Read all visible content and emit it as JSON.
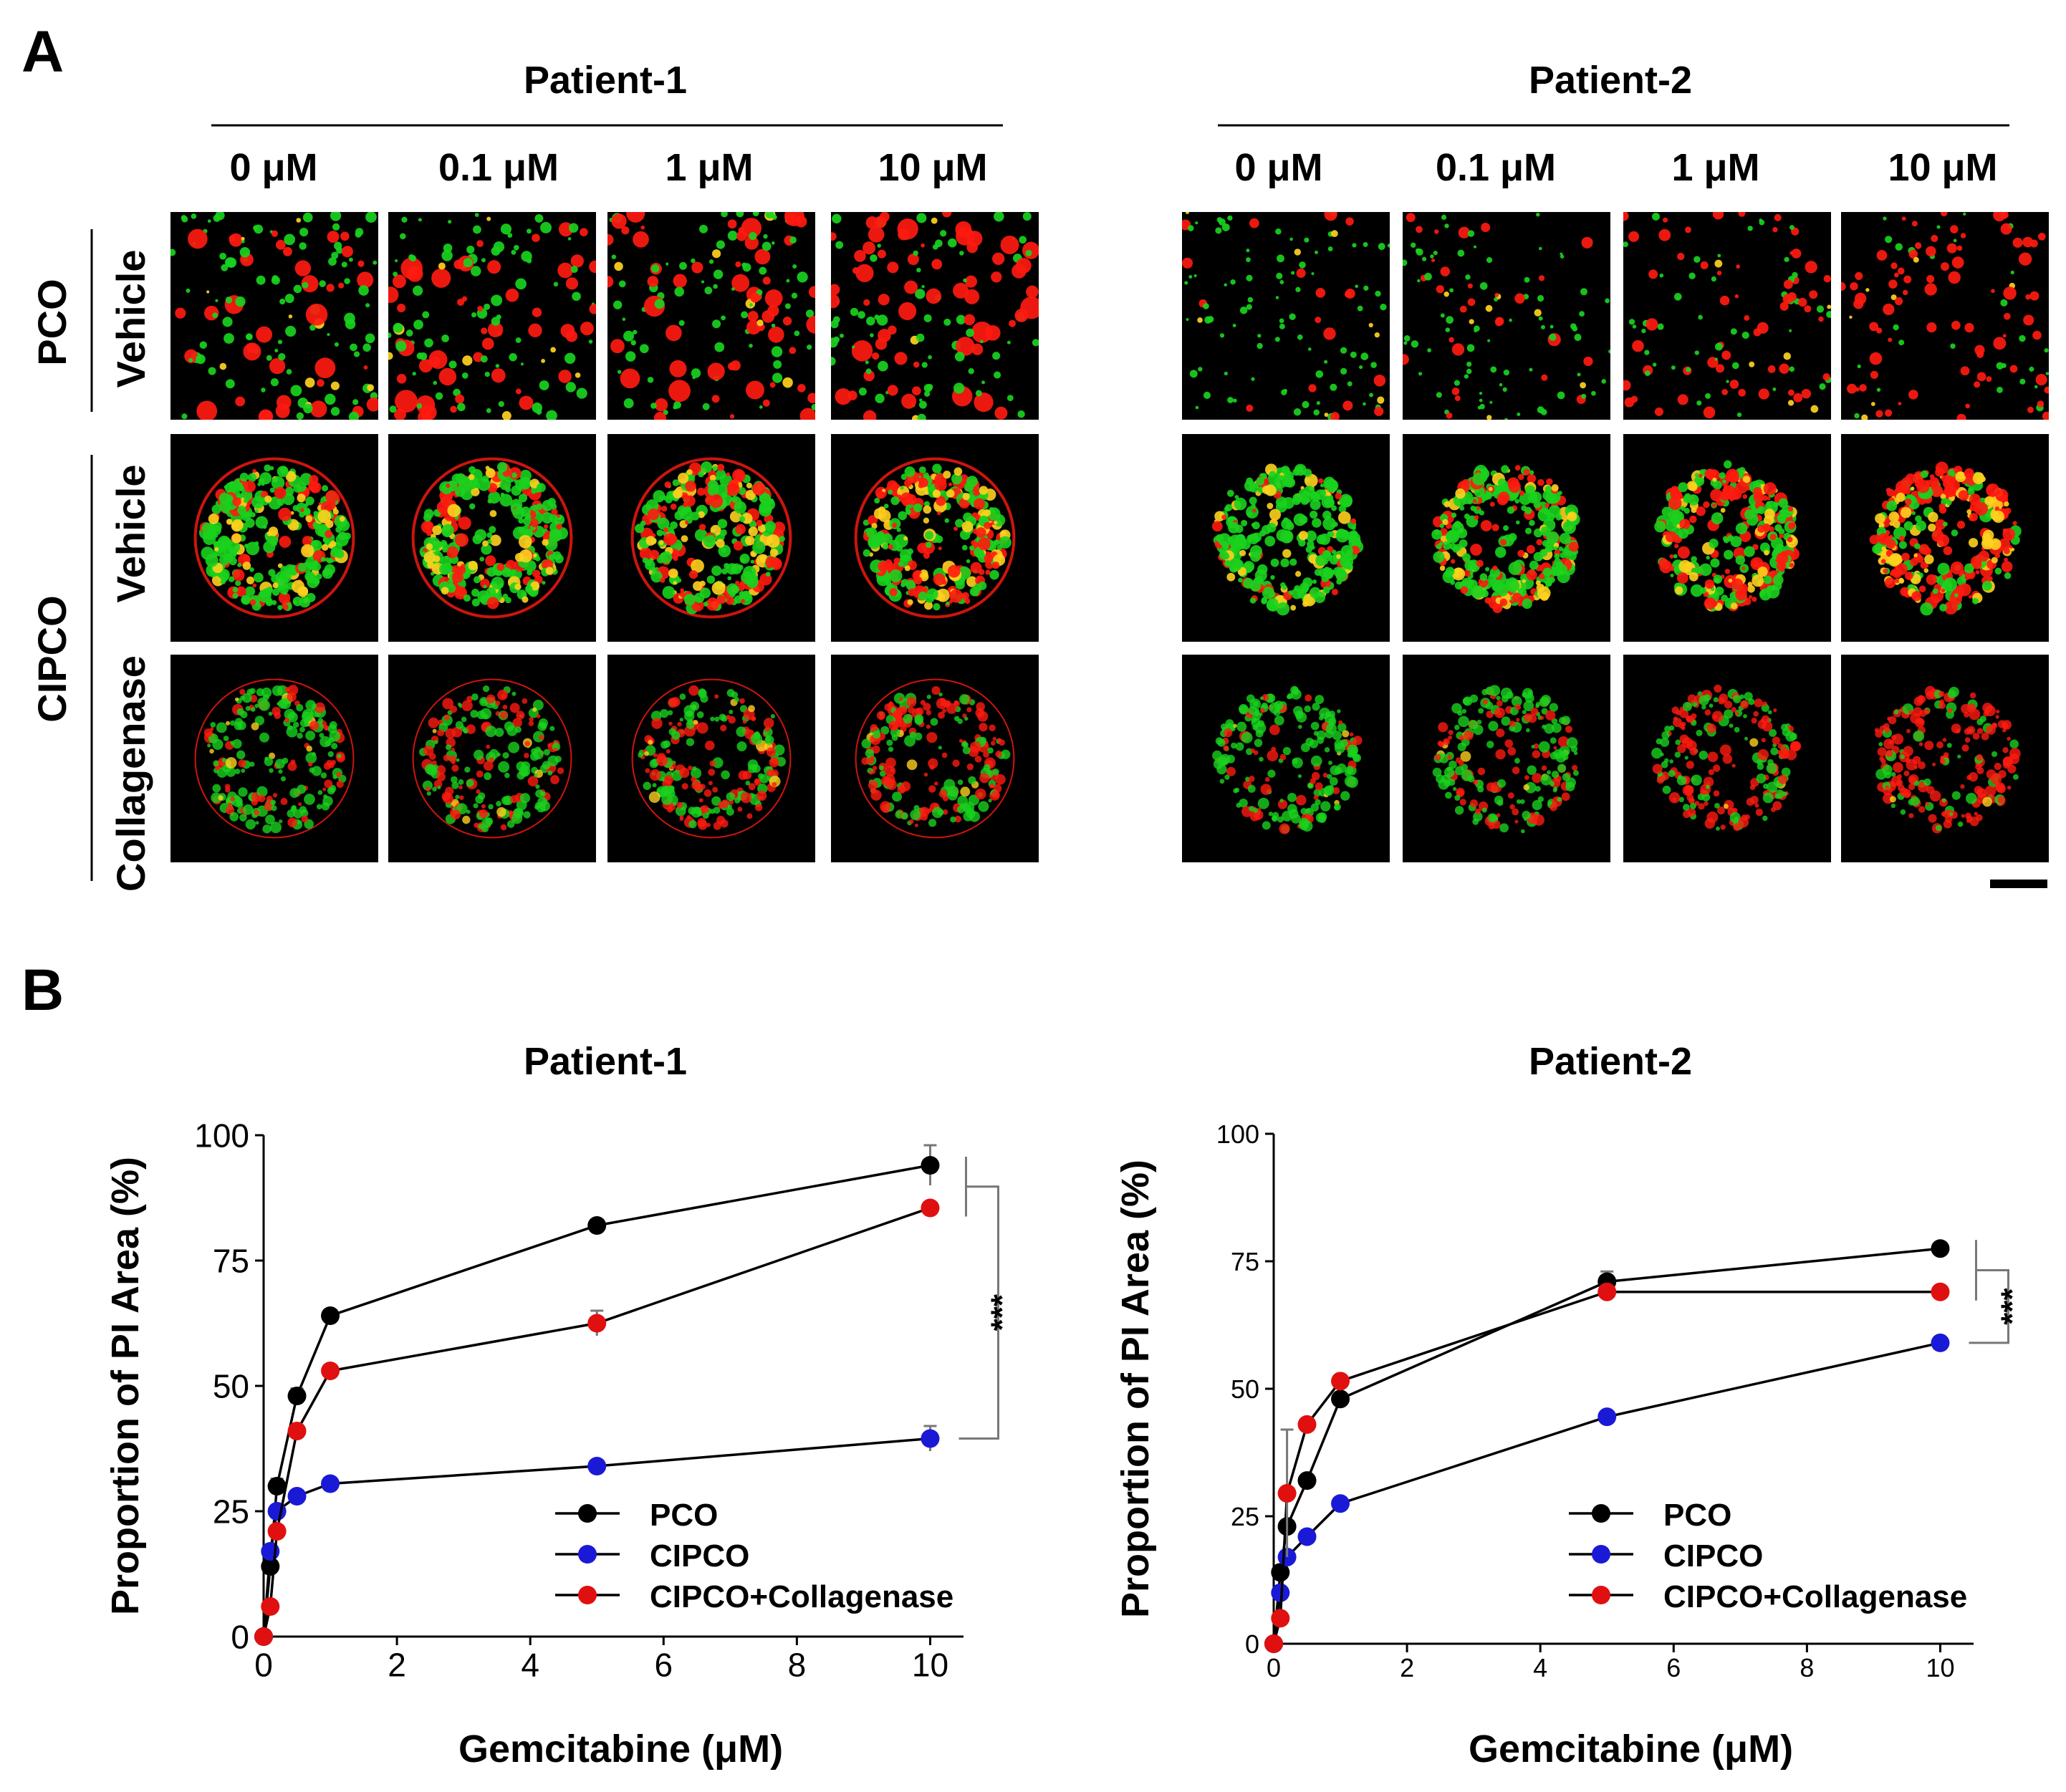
{
  "panel_labels": {
    "a": "A",
    "b": "B"
  },
  "panel_a": {
    "patients": [
      "Patient-1",
      "Patient-2"
    ],
    "concentrations": [
      "0 μM",
      "0.1 μM",
      "1 μM",
      "10 μM"
    ],
    "groups": [
      "PCO",
      "CIPCO"
    ],
    "rows": [
      "Vehicle",
      "Vehicle",
      "Collagenase"
    ],
    "row_styles": [
      "sparse",
      "ring",
      "ring-dim"
    ],
    "color_channels": {
      "live": "#19d21e",
      "dead": "#ff1a10",
      "merge": "#ffd21e",
      "background": "#000000"
    }
  },
  "panel_b": {
    "legend": [
      "PCO",
      "CIPCO",
      "CIPCO+Collagenase"
    ],
    "colors": {
      "PCO": "#000000",
      "CIPCO": "#1a1ad6",
      "CIPCO+Collagenase": "#e01010"
    },
    "significance": "***"
  },
  "chart_data": [
    {
      "type": "line",
      "title": "Patient-1",
      "xlabel": "Gemcitabine (μM)",
      "ylabel": "Proportion of PI Area (%)",
      "xlim": [
        0,
        10.5
      ],
      "ylim": [
        0,
        100
      ],
      "xticks": [
        0,
        2,
        4,
        6,
        8,
        10
      ],
      "yticks": [
        0,
        25,
        50,
        75,
        100
      ],
      "x": [
        0,
        0.1,
        0.2,
        0.5,
        1,
        5,
        10
      ],
      "series": [
        {
          "name": "PCO",
          "values": [
            0,
            14,
            30,
            48,
            64,
            82,
            94
          ],
          "err": [
            0,
            2,
            1.5,
            1.5,
            1,
            1,
            4
          ]
        },
        {
          "name": "CIPCO",
          "values": [
            0,
            17,
            25,
            28,
            30.5,
            34,
            39.5
          ],
          "err": [
            0,
            1,
            1,
            1,
            1,
            1,
            2.5
          ]
        },
        {
          "name": "CIPCO+Collagenase",
          "values": [
            0,
            6,
            21,
            41,
            53,
            62.5,
            85.5
          ],
          "err": [
            0,
            1,
            1,
            1,
            1,
            2.5,
            1
          ]
        }
      ],
      "significance": "***"
    },
    {
      "type": "line",
      "title": "Patient-2",
      "xlabel": "Gemcitabine (μM)",
      "ylabel": "Proportion of PI Area (%)",
      "xlim": [
        0,
        10.5
      ],
      "ylim": [
        0,
        100
      ],
      "xticks": [
        0,
        2,
        4,
        6,
        8,
        10
      ],
      "yticks": [
        0,
        25,
        50,
        75,
        100
      ],
      "x": [
        0,
        0.1,
        0.2,
        0.5,
        1,
        5,
        10
      ],
      "series": [
        {
          "name": "PCO",
          "values": [
            0,
            14,
            23,
            32,
            48,
            71,
            77.5
          ],
          "err": [
            0,
            1,
            1,
            1,
            1,
            2,
            1
          ]
        },
        {
          "name": "CIPCO",
          "values": [
            0,
            10,
            17,
            21,
            27.5,
            44.5,
            59
          ],
          "err": [
            0,
            1,
            1,
            1,
            1,
            1,
            1
          ]
        },
        {
          "name": "CIPCO+Collagenase",
          "values": [
            0,
            5,
            29.5,
            43,
            51.5,
            69,
            69
          ],
          "err": [
            0,
            1,
            12.5,
            1,
            1,
            1,
            1
          ]
        }
      ],
      "significance": "***"
    }
  ]
}
